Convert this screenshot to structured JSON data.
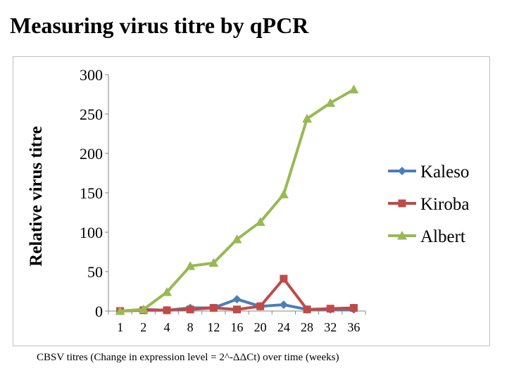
{
  "title": "Measuring virus titre by qPCR",
  "caption": "CBSV titres (Change in expression level  = 2^-ΔΔCt) over time (weeks)",
  "chart_data": {
    "type": "line",
    "title": "",
    "xlabel": "",
    "ylabel": "Relative virus titre",
    "categories": [
      "1",
      "2",
      "4",
      "8",
      "12",
      "16",
      "20",
      "24",
      "28",
      "32",
      "36"
    ],
    "ylim": [
      0,
      300
    ],
    "yticks": [
      0,
      50,
      100,
      150,
      200,
      250,
      300
    ],
    "grid": false,
    "legend_position": "right",
    "series": [
      {
        "name": "Kaleso",
        "color": "#4a7ebb",
        "marker": "diamond",
        "values": [
          0,
          2,
          1,
          4,
          4,
          15,
          6,
          8,
          2,
          2,
          2
        ]
      },
      {
        "name": "Kiroba",
        "color": "#be4b48",
        "marker": "square",
        "values": [
          0,
          1,
          1,
          2,
          4,
          2,
          6,
          41,
          2,
          3,
          4
        ]
      },
      {
        "name": "Albert",
        "color": "#98b954",
        "marker": "triangle",
        "values": [
          0,
          2,
          24,
          57,
          61,
          91,
          113,
          148,
          244,
          264,
          281
        ]
      }
    ]
  }
}
